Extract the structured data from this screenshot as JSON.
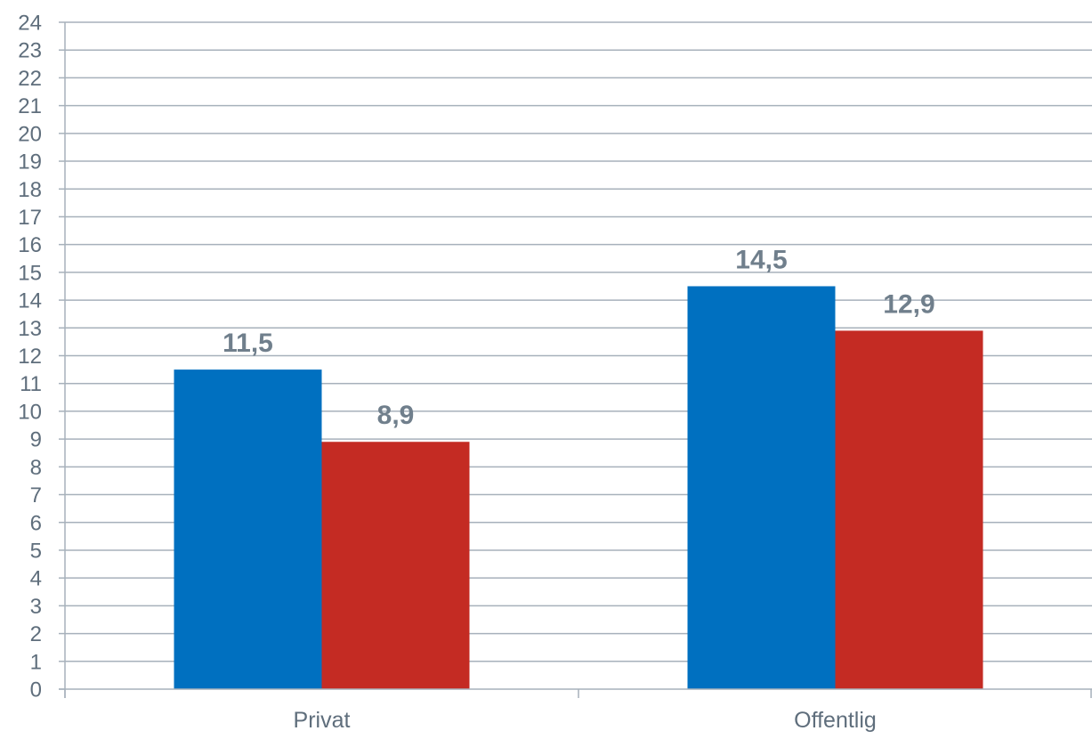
{
  "chart_data": {
    "type": "bar",
    "categories": [
      "Privat",
      "Offentlig"
    ],
    "series": [
      {
        "values": [
          11.5,
          14.5
        ],
        "color": "#0070c0"
      },
      {
        "values": [
          8.9,
          12.9
        ],
        "color": "#c42b23"
      }
    ],
    "data_labels": [
      [
        "11,5",
        "14,5"
      ],
      [
        "8,9",
        "12,9"
      ]
    ],
    "ylim": [
      0,
      24
    ],
    "yticks": [
      0,
      1,
      2,
      3,
      4,
      5,
      6,
      7,
      8,
      9,
      10,
      11,
      12,
      13,
      14,
      15,
      16,
      17,
      18,
      19,
      20,
      21,
      22,
      23,
      24
    ],
    "grid": true,
    "legend": "none"
  }
}
